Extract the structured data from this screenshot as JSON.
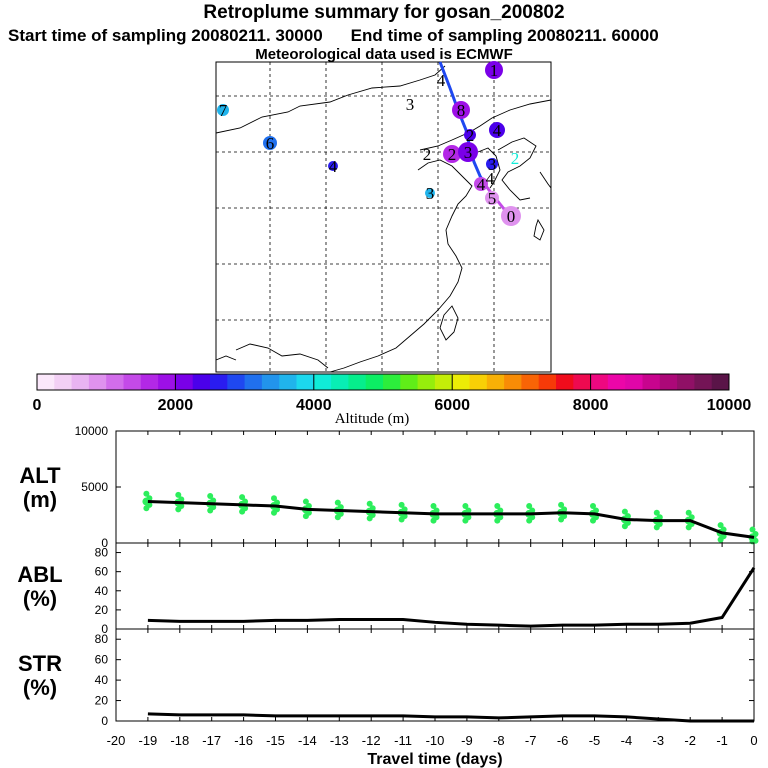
{
  "header": {
    "title": "Retroplume summary for gosan_200802",
    "start_label": "Start time of sampling 20080211. 30000",
    "end_label": "End time of sampling 20080211. 60000",
    "met_label": "Meteorological data used is ECMWF"
  },
  "colorbar": {
    "ticks": [
      "0",
      "2000",
      "4000",
      "6000",
      "8000",
      "10000"
    ],
    "label": "Altitude (m)",
    "colors": [
      "#fbe8fb",
      "#f3d0f5",
      "#e9b4f2",
      "#df92ee",
      "#d26deb",
      "#c44ae8",
      "#b328e6",
      "#9d10e6",
      "#7a00e8",
      "#4b00ea",
      "#2a1cf0",
      "#1f48f0",
      "#2070ee",
      "#2294ec",
      "#20b4ec",
      "#1cd8ee",
      "#10ecd8",
      "#08eeb4",
      "#06ee8c",
      "#0cee64",
      "#2cee3c",
      "#60ee18",
      "#96ee0c",
      "#c4ee08",
      "#ecec06",
      "#f8d006",
      "#f8b006",
      "#f88c06",
      "#f86406",
      "#f63a08",
      "#f00c1c",
      "#ee0a50",
      "#ee0880",
      "#ec06a8",
      "#e006a8",
      "#c8048e",
      "#ac0878",
      "#901066",
      "#741456",
      "#5a1448"
    ]
  },
  "map": {
    "labels": [
      "7",
      "6",
      "4",
      "3",
      "4",
      "1",
      "8",
      "4",
      "3",
      "2",
      "3",
      "2",
      "2",
      "4",
      "3",
      "4",
      "2",
      "0",
      "5"
    ]
  },
  "chart_data": [
    {
      "type": "line",
      "panel": "ALT",
      "ylabel_line1": "ALT",
      "ylabel_line2": "(m)",
      "ylim": [
        0,
        10000
      ],
      "yticks": [
        "10000",
        "5000",
        "0"
      ],
      "x": [
        0,
        -1,
        -2,
        -3,
        -4,
        -5,
        -6,
        -7,
        -8,
        -9,
        -10,
        -11,
        -12,
        -13,
        -14,
        -15,
        -16,
        -17,
        -18,
        -19
      ],
      "values": [
        500,
        900,
        2000,
        2000,
        2100,
        2600,
        2700,
        2600,
        2600,
        2600,
        2600,
        2700,
        2800,
        2900,
        3000,
        3300,
        3400,
        3500,
        3600,
        3700
      ]
    },
    {
      "type": "line",
      "panel": "ABL",
      "ylabel_line1": "ABL",
      "ylabel_line2": "(%)",
      "ylim": [
        0,
        90
      ],
      "yticks": [
        "80",
        "60",
        "40",
        "20",
        "0"
      ],
      "x": [
        0,
        -1,
        -2,
        -3,
        -4,
        -5,
        -6,
        -7,
        -8,
        -9,
        -10,
        -11,
        -12,
        -13,
        -14,
        -15,
        -16,
        -17,
        -18,
        -19
      ],
      "values": [
        64,
        12,
        6,
        5,
        5,
        4,
        4,
        3,
        4,
        5,
        7,
        10,
        10,
        10,
        9,
        9,
        8,
        8,
        8,
        9
      ]
    },
    {
      "type": "line",
      "panel": "STR",
      "ylabel_line1": "STR",
      "ylabel_line2": "(%)",
      "ylim": [
        0,
        90
      ],
      "yticks": [
        "80",
        "60",
        "40",
        "20",
        "0"
      ],
      "x": [
        0,
        -1,
        -2,
        -3,
        -4,
        -5,
        -6,
        -7,
        -8,
        -9,
        -10,
        -11,
        -12,
        -13,
        -14,
        -15,
        -16,
        -17,
        -18,
        -19
      ],
      "values": [
        0,
        0,
        0,
        2,
        4,
        5,
        5,
        4,
        3,
        4,
        4,
        5,
        5,
        5,
        5,
        5,
        6,
        6,
        6,
        7
      ]
    },
    {
      "type": "axis",
      "xlabel": "Travel time (days)",
      "xticks": [
        "-20",
        "-19",
        "-18",
        "-17",
        "-16",
        "-15",
        "-14",
        "-13",
        "-12",
        "-11",
        "-10",
        "-9",
        "-8",
        "-7",
        "-6",
        "-5",
        "-4",
        "-3",
        "-2",
        "-1",
        "0"
      ],
      "xlim": [
        -20,
        0
      ]
    }
  ]
}
